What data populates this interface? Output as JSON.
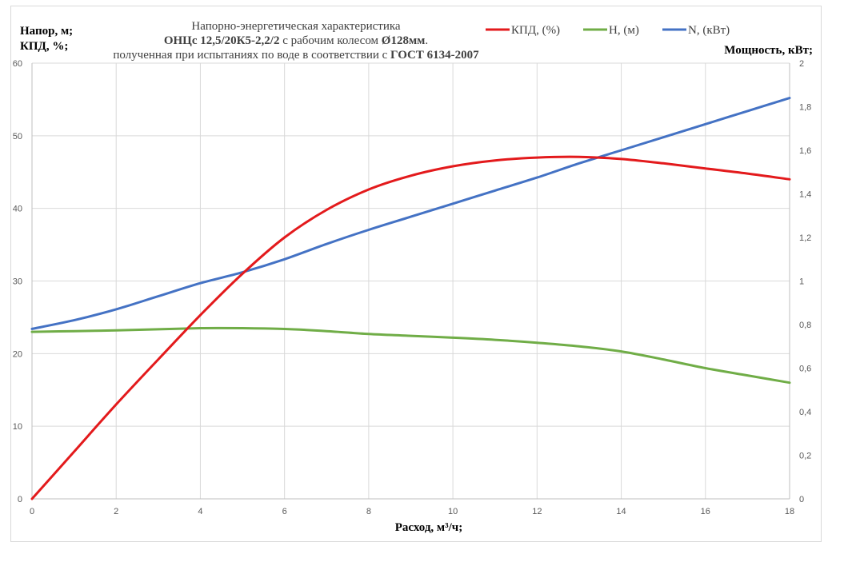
{
  "chart_data": {
    "type": "line",
    "title": {
      "line1": "Напорно-энергетическая характеристика",
      "line2_bold": "ОНЦс 12,5/20К5-2,2/2",
      "line2_mid": " с рабочим колесом ",
      "line2_bold2": "Ø128мм",
      "line2_end": ".",
      "line3": "полученная при испытаниях по воде в соответствии с ",
      "line3_bold": "ГОСТ 6134-2007"
    },
    "xlabel": "Расход, м³/ч;",
    "ylabel_left": [
      "Напор, м;",
      "КПД, %;"
    ],
    "ylabel_right": "Мощность, кВт;",
    "xlim": [
      0,
      18
    ],
    "ylim_left": [
      0,
      60
    ],
    "ylim_right": [
      0,
      2
    ],
    "x_ticks": [
      "0",
      "2",
      "4",
      "6",
      "8",
      "10",
      "12",
      "14",
      "16",
      "18"
    ],
    "y_left_ticks": [
      "0",
      "10",
      "20",
      "30",
      "40",
      "50",
      "60"
    ],
    "y_right_ticks": [
      "0",
      "0,2",
      "0,4",
      "0,6",
      "0,8",
      "1",
      "1,2",
      "1,4",
      "1,6",
      "1,8",
      "2"
    ],
    "grid": true,
    "legend_position": "top-right",
    "series": [
      {
        "name": "КПД, (%)",
        "axis": "left",
        "color": "#e31a1c",
        "x": [
          0,
          1,
          2,
          3,
          4,
          5,
          6,
          7,
          8,
          9,
          10,
          11,
          12,
          13,
          14,
          15,
          16,
          17,
          18
        ],
        "y": [
          0,
          6.5,
          13,
          19.2,
          25.3,
          31,
          36,
          39.8,
          42.6,
          44.5,
          45.8,
          46.6,
          47,
          47.1,
          46.8,
          46.2,
          45.5,
          44.8,
          44
        ]
      },
      {
        "name": "H, (м)",
        "axis": "left",
        "color": "#70ad47",
        "x": [
          0,
          1,
          2,
          3,
          4,
          5,
          6,
          7,
          8,
          9,
          10,
          11,
          12,
          13,
          14,
          15,
          16,
          17,
          18
        ],
        "y": [
          23,
          23.1,
          23.2,
          23.35,
          23.5,
          23.5,
          23.4,
          23.1,
          22.7,
          22.45,
          22.2,
          21.9,
          21.5,
          21,
          20.3,
          19.2,
          18,
          17,
          16
        ]
      },
      {
        "name": "N, (кВт)",
        "axis": "right",
        "color": "#4472c4",
        "x": [
          0,
          1,
          2,
          3,
          4,
          5,
          6,
          7,
          8,
          9,
          10,
          11,
          12,
          13,
          14,
          15,
          16,
          17,
          18
        ],
        "y": [
          0.78,
          0.82,
          0.87,
          0.93,
          0.99,
          1.04,
          1.1,
          1.17,
          1.235,
          1.295,
          1.355,
          1.415,
          1.475,
          1.54,
          1.6,
          1.66,
          1.72,
          1.78,
          1.84
        ]
      }
    ]
  }
}
